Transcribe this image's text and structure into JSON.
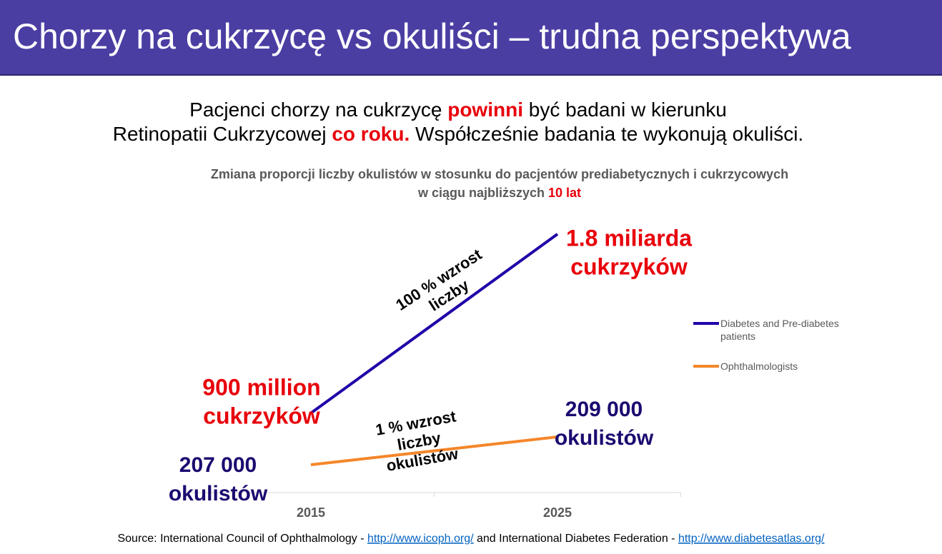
{
  "header": {
    "title": "Chorzy na cukrzycę vs okuliści – trudna perspektywa"
  },
  "subtitle": {
    "lines": [
      [
        {
          "text": "Pacjenci chorzy na cukrzycę "
        },
        {
          "text": "powinni",
          "emphasis": true
        },
        {
          "text": " być badani w kierunku"
        }
      ],
      [
        {
          "text": "Retinopatii Cukrzycowej "
        },
        {
          "text": "co roku.",
          "emphasis": true
        },
        {
          "text": " Współcześnie badania te wykonują okuliści."
        }
      ]
    ]
  },
  "chart_data": {
    "type": "line",
    "title": [
      [
        {
          "text": "Zmiana proporcji liczby okulistów w stosunku do pacjentów prediabetycznych i cukrzycowych"
        }
      ],
      [
        {
          "text": "w ciągu najbliższych "
        },
        {
          "text": "10 lat",
          "emphasis": true
        }
      ]
    ],
    "categories": [
      "2015",
      "2025"
    ],
    "ylim": [
      500000000,
      1900000000
    ],
    "y2lim": [
      205000,
      225000
    ],
    "legend": "right",
    "series": [
      {
        "name": "Diabetes and Pre-diabetes patients",
        "color": "#2100a8",
        "values": [
          900000000,
          1800000000
        ],
        "value_labels": [
          "900 million",
          "1.8 miliarda"
        ],
        "label_units": [
          "cukrzyków",
          "cukrzyków"
        ],
        "label_color": "#e8000b"
      },
      {
        "name": "Ophthalmologists",
        "color": "#f5862a",
        "axis": "y2",
        "values": [
          207000,
          209000
        ],
        "value_labels": [
          "207 000",
          "209 000"
        ],
        "label_units": [
          "okulistów",
          "okulistów"
        ],
        "label_color": "#1a0a70"
      }
    ],
    "annotations": [
      {
        "lines": [
          "100 % wzrost",
          "liczby"
        ]
      },
      {
        "lines": [
          "1 % wzrost",
          "liczby",
          "okulistów"
        ]
      }
    ]
  },
  "source": {
    "parts": [
      {
        "text": "Source: International Council of Ophthalmology - "
      },
      {
        "text": "http://www.icoph.org/",
        "link": true
      },
      {
        "text": " and International Diabetes Federation - "
      },
      {
        "text": "http://www.diabetesatlas.org/",
        "link": true
      }
    ]
  }
}
